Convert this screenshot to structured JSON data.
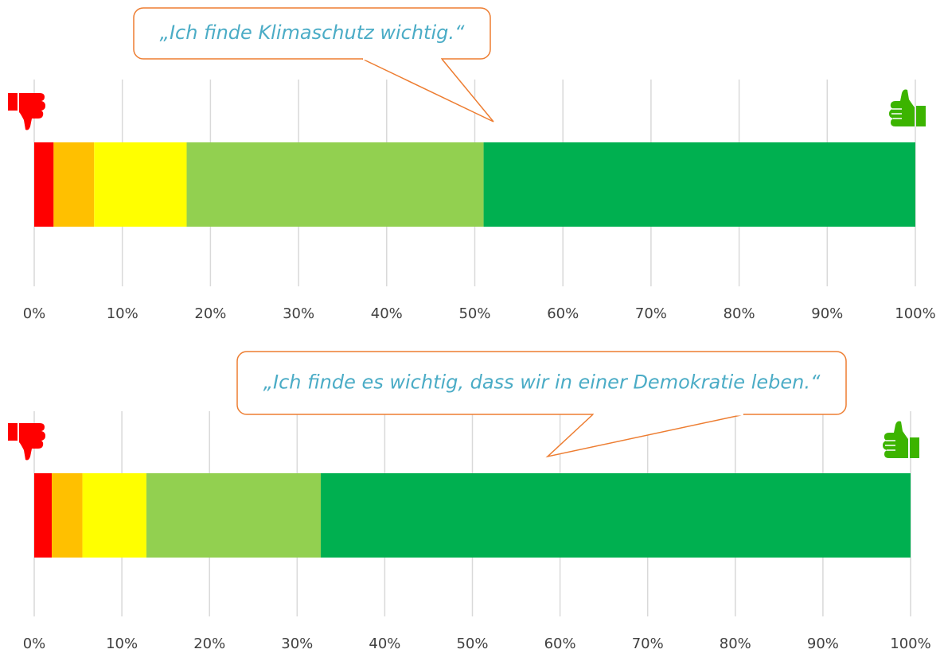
{
  "chart_data": [
    {
      "type": "bar",
      "title": "„Ich finde Klimaschutz wichtig.“",
      "series": [
        {
          "color": "#ff0000",
          "values": [
            2.2
          ]
        },
        {
          "color": "#ffc000",
          "values": [
            4.6
          ]
        },
        {
          "color": "#ffff00",
          "values": [
            10.5
          ]
        },
        {
          "color": "#92d050",
          "values": [
            33.7
          ]
        },
        {
          "color": "#00b050",
          "values": [
            49.0
          ]
        }
      ],
      "xlim": [
        0,
        100
      ],
      "xticks": [
        {
          "value": 0,
          "label": "0%"
        },
        {
          "value": 10,
          "label": "10%"
        },
        {
          "value": 20,
          "label": "20%"
        },
        {
          "value": 30,
          "label": "30%"
        },
        {
          "value": 40,
          "label": "40%"
        },
        {
          "value": 50,
          "label": "50%"
        },
        {
          "value": 60,
          "label": "60%"
        },
        {
          "value": 70,
          "label": "70%"
        },
        {
          "value": 80,
          "label": "80%"
        },
        {
          "value": 90,
          "label": "90%"
        },
        {
          "value": 100,
          "label": "100%"
        }
      ],
      "grid": true
    },
    {
      "type": "bar",
      "title": "„Ich finde es wichtig, dass wir in einer Demokratie leben.“",
      "series": [
        {
          "color": "#ff0000",
          "values": [
            2.0
          ]
        },
        {
          "color": "#ffc000",
          "values": [
            3.5
          ]
        },
        {
          "color": "#ffff00",
          "values": [
            7.3
          ]
        },
        {
          "color": "#92d050",
          "values": [
            19.9
          ]
        },
        {
          "color": "#00b050",
          "values": [
            67.3
          ]
        }
      ],
      "xlim": [
        0,
        100
      ],
      "xticks": [
        {
          "value": 0,
          "label": "0%"
        },
        {
          "value": 10,
          "label": "10%"
        },
        {
          "value": 20,
          "label": "20%"
        },
        {
          "value": 30,
          "label": "30%"
        },
        {
          "value": 40,
          "label": "40%"
        },
        {
          "value": 50,
          "label": "50%"
        },
        {
          "value": 60,
          "label": "60%"
        },
        {
          "value": 70,
          "label": "70%"
        },
        {
          "value": 80,
          "label": "80%"
        },
        {
          "value": 90,
          "label": "90%"
        },
        {
          "value": 100,
          "label": "100%"
        }
      ],
      "grid": true
    }
  ]
}
